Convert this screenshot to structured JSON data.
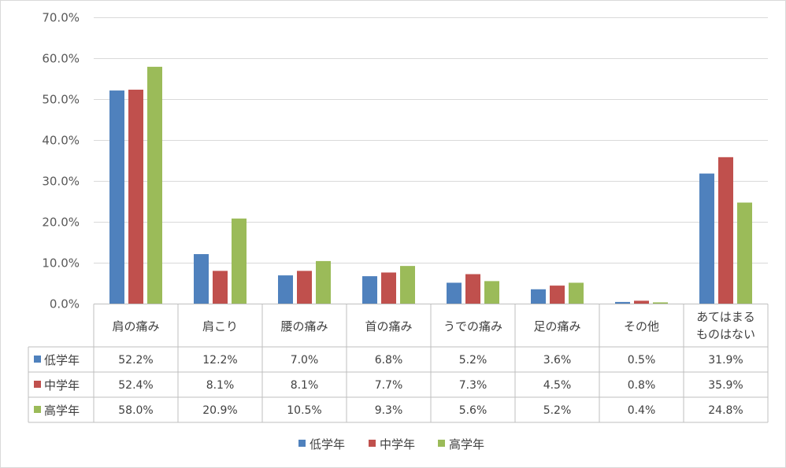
{
  "chart_data": {
    "type": "bar",
    "categories": [
      "肩の痛み",
      "肩こり",
      "腰の痛み",
      "首の痛み",
      "うでの痛み",
      "足の痛み",
      "その他",
      "あてはまる\nものはない"
    ],
    "series": [
      {
        "name": "低学年",
        "color": "#4f81bd",
        "values": [
          52.2,
          12.2,
          7.0,
          6.8,
          5.2,
          3.6,
          0.5,
          31.9
        ],
        "labels": [
          "52.2%",
          "12.2%",
          "7.0%",
          "6.8%",
          "5.2%",
          "3.6%",
          "0.5%",
          "31.9%"
        ]
      },
      {
        "name": "中学年",
        "color": "#c0504d",
        "values": [
          52.4,
          8.1,
          8.1,
          7.7,
          7.3,
          4.5,
          0.8,
          35.9
        ],
        "labels": [
          "52.4%",
          "8.1%",
          "8.1%",
          "7.7%",
          "7.3%",
          "4.5%",
          "0.8%",
          "35.9%"
        ]
      },
      {
        "name": "高学年",
        "color": "#9bbb59",
        "values": [
          58.0,
          20.9,
          10.5,
          9.3,
          5.6,
          5.2,
          0.4,
          24.8
        ],
        "labels": [
          "58.0%",
          "20.9%",
          "10.5%",
          "9.3%",
          "5.6%",
          "5.2%",
          "0.4%",
          "24.8%"
        ]
      }
    ],
    "ylim": [
      0,
      70
    ],
    "yticks": [
      "0.0%",
      "10.0%",
      "20.0%",
      "30.0%",
      "40.0%",
      "50.0%",
      "60.0%",
      "70.0%"
    ],
    "grid": true,
    "legend": "bottom",
    "data_table": true
  }
}
